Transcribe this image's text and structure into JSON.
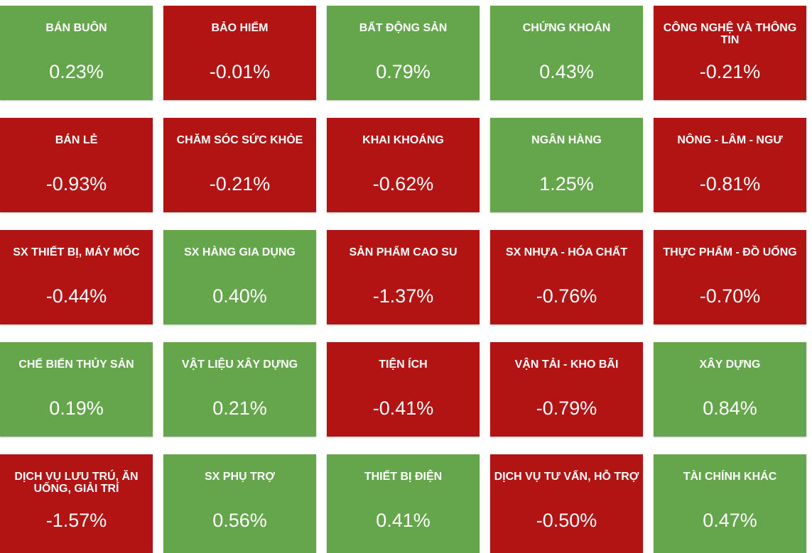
{
  "colors": {
    "up": "#65a54c",
    "down": "#b21414",
    "text": "#ffffff"
  },
  "sectors": [
    {
      "name": "BÁN BUÔN",
      "change": "0.23%",
      "trend": "up"
    },
    {
      "name": "BẢO HIỂM",
      "change": "-0.01%",
      "trend": "down"
    },
    {
      "name": "BẤT ĐỘNG SẢN",
      "change": "0.79%",
      "trend": "up"
    },
    {
      "name": "CHỨNG KHOÁN",
      "change": "0.43%",
      "trend": "up"
    },
    {
      "name": "CÔNG NGHỆ VÀ THÔNG TIN",
      "change": "-0.21%",
      "trend": "down"
    },
    {
      "name": "BÁN LẺ",
      "change": "-0.93%",
      "trend": "down"
    },
    {
      "name": "CHĂM SÓC SỨC KHỎE",
      "change": "-0.21%",
      "trend": "down"
    },
    {
      "name": "KHAI KHOÁNG",
      "change": "-0.62%",
      "trend": "down"
    },
    {
      "name": "NGÂN HÀNG",
      "change": "1.25%",
      "trend": "up"
    },
    {
      "name": "NÔNG - LÂM - NGƯ",
      "change": "-0.81%",
      "trend": "down"
    },
    {
      "name": "SX THIẾT BỊ, MÁY MÓC",
      "change": "-0.44%",
      "trend": "down"
    },
    {
      "name": "SX HÀNG GIA DỤNG",
      "change": "0.40%",
      "trend": "up"
    },
    {
      "name": "SẢN PHẨM CAO SU",
      "change": "-1.37%",
      "trend": "down"
    },
    {
      "name": "SX NHỰA - HÓA CHẤT",
      "change": "-0.76%",
      "trend": "down"
    },
    {
      "name": "THỰC PHẨM - ĐỒ UỐNG",
      "change": "-0.70%",
      "trend": "down"
    },
    {
      "name": "CHẾ BIẾN THỦY SẢN",
      "change": "0.19%",
      "trend": "up"
    },
    {
      "name": "VẬT LIỆU XÂY DỰNG",
      "change": "0.21%",
      "trend": "up"
    },
    {
      "name": "TIỆN ÍCH",
      "change": "-0.41%",
      "trend": "down"
    },
    {
      "name": "VẬN TẢI - KHO BÃI",
      "change": "-0.79%",
      "trend": "down"
    },
    {
      "name": "XÂY DỰNG",
      "change": "0.84%",
      "trend": "up"
    },
    {
      "name": "DỊCH VỤ LƯU TRÚ, ĂN UỐNG, GIẢI TRÍ",
      "change": "-1.57%",
      "trend": "down"
    },
    {
      "name": "SX PHỤ TRỢ",
      "change": "0.56%",
      "trend": "up"
    },
    {
      "name": "THIẾT BỊ ĐIỆN",
      "change": "0.41%",
      "trend": "up"
    },
    {
      "name": "DỊCH VỤ TƯ VẤN, HỖ TRỢ",
      "change": "-0.50%",
      "trend": "down"
    },
    {
      "name": "TÀI CHÍNH KHÁC",
      "change": "0.47%",
      "trend": "up"
    }
  ]
}
